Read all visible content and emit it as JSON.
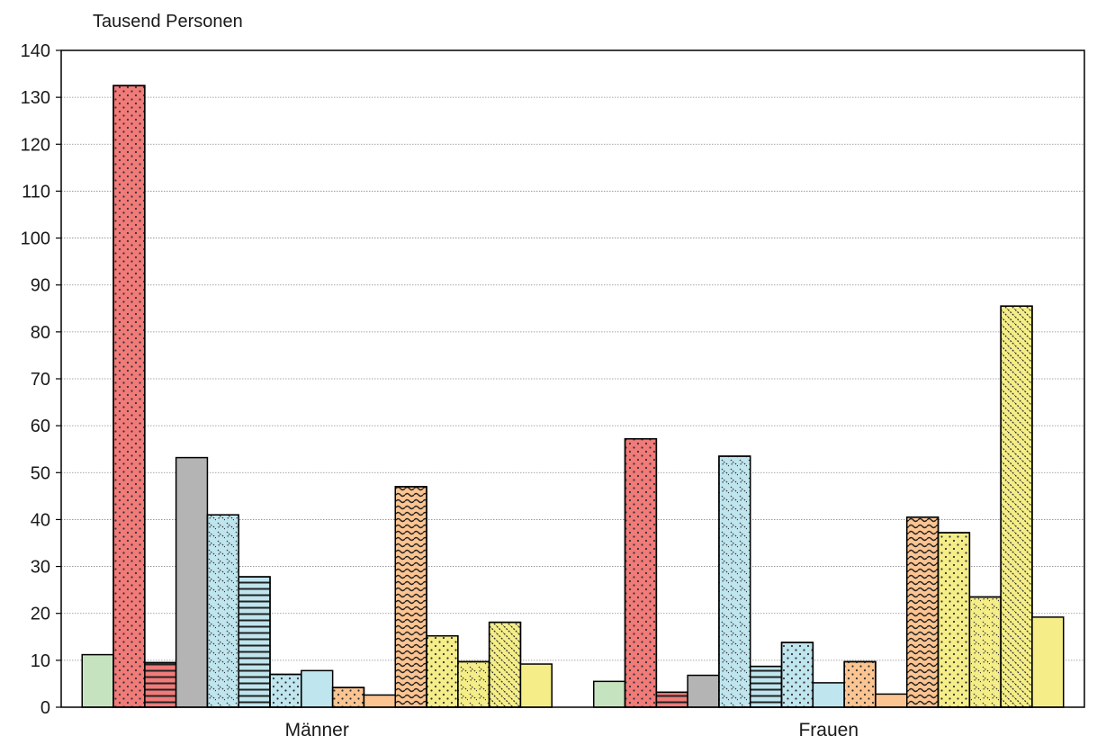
{
  "chart_data": {
    "type": "bar",
    "ylabel": "Tausend Personen",
    "ylim": [
      0,
      140
    ],
    "yticks": [
      0,
      10,
      20,
      30,
      40,
      50,
      60,
      70,
      80,
      90,
      100,
      110,
      120,
      130,
      140
    ],
    "grid": true,
    "legend": "none",
    "categories": [
      "Männer",
      "Frauen"
    ],
    "series": [
      {
        "values": [
          11.2,
          5.5
        ],
        "color": "#c6e3c0",
        "pattern": "solid"
      },
      {
        "values": [
          132.5,
          57.2
        ],
        "color": "#f07b79",
        "pattern": "dots"
      },
      {
        "values": [
          9.5,
          3.2
        ],
        "color": "#f07b79",
        "pattern": "hlines"
      },
      {
        "values": [
          53.2,
          6.8
        ],
        "color": "#b4b4b4",
        "pattern": "solid"
      },
      {
        "values": [
          41.0,
          53.5
        ],
        "color": "#bfe5ee",
        "pattern": "zigzag"
      },
      {
        "values": [
          27.8,
          8.7
        ],
        "color": "#bfe5ee",
        "pattern": "hlines"
      },
      {
        "values": [
          7.0,
          13.8
        ],
        "color": "#bfe5ee",
        "pattern": "dots"
      },
      {
        "values": [
          7.8,
          5.2
        ],
        "color": "#bfe5ee",
        "pattern": "solid"
      },
      {
        "values": [
          4.2,
          9.7
        ],
        "color": "#fbc491",
        "pattern": "dots"
      },
      {
        "values": [
          2.6,
          2.8
        ],
        "color": "#fbc491",
        "pattern": "solid"
      },
      {
        "values": [
          47.0,
          40.5
        ],
        "color": "#fbc491",
        "pattern": "waves"
      },
      {
        "values": [
          15.2,
          37.2
        ],
        "color": "#f5ee88",
        "pattern": "dots"
      },
      {
        "values": [
          9.7,
          23.5
        ],
        "color": "#f5ee88",
        "pattern": "zigzag"
      },
      {
        "values": [
          18.1,
          85.5
        ],
        "color": "#f5ee88",
        "pattern": "diag"
      },
      {
        "values": [
          9.2,
          19.2
        ],
        "color": "#f5ee88",
        "pattern": "solid"
      }
    ]
  }
}
